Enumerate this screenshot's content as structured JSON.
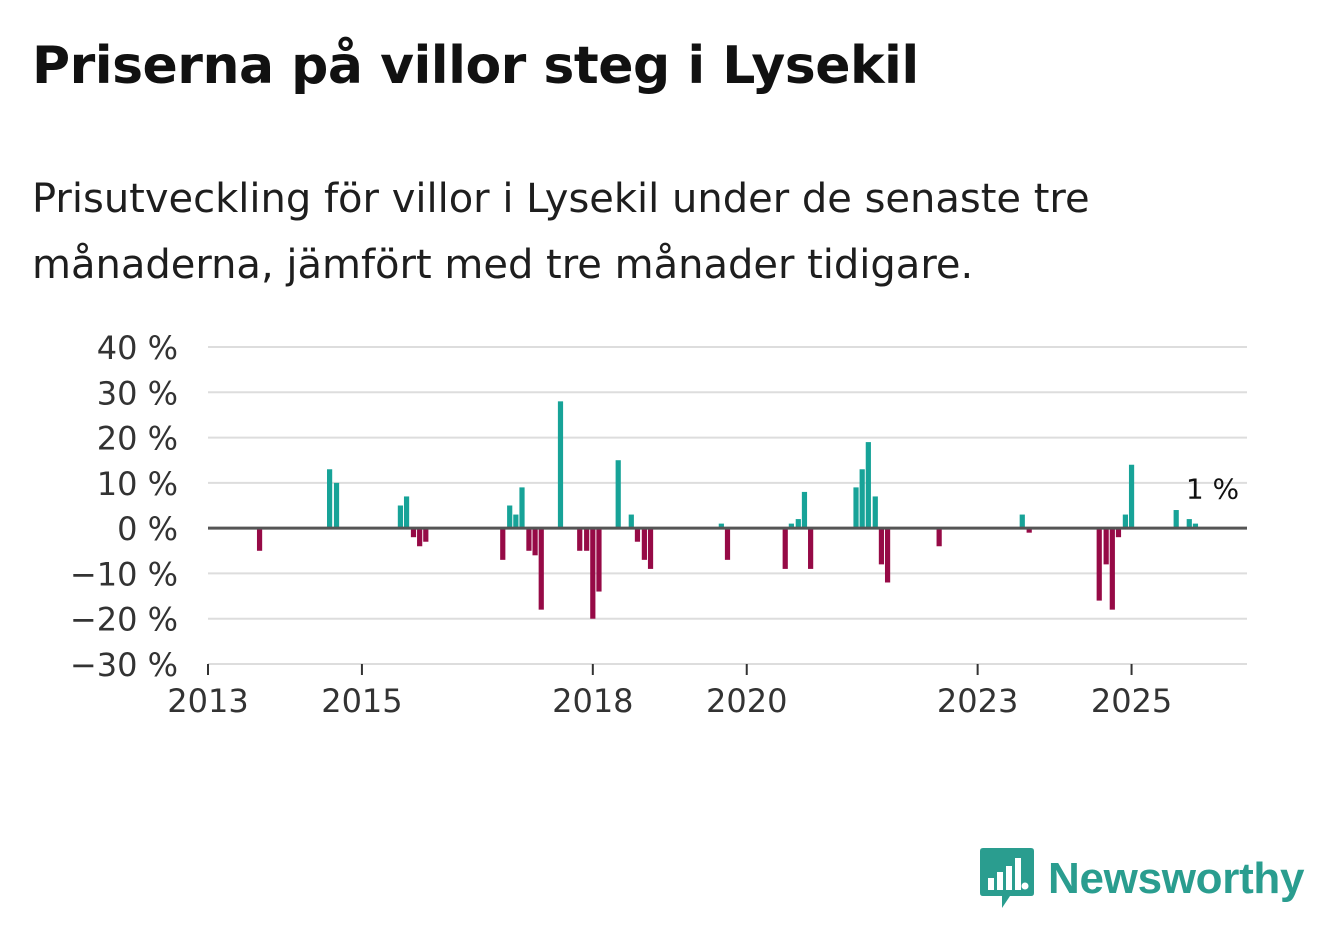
{
  "header": {
    "title": "Priserna på villor steg i Lysekil",
    "subtitle": "Prisutveckling för villor i Lysekil under de senaste tre månaderna, jämfört med tre månader tidigare."
  },
  "brand": {
    "name": "Newsworthy"
  },
  "colors": {
    "positive": "#17a398",
    "negative": "#960a46",
    "grid": "#dddddd",
    "zero": "#555555",
    "brand": "#2a9d8f"
  },
  "chart_data": {
    "type": "bar",
    "title": "Priserna på villor steg i Lysekil",
    "xlabel": "",
    "ylabel": "",
    "ylim": [
      -30,
      40
    ],
    "yticks": [
      40,
      30,
      20,
      10,
      0,
      -10,
      -20,
      -30
    ],
    "ytick_labels": [
      "40 %",
      "30 %",
      "20 %",
      "10 %",
      "0 %",
      "−10 %",
      "−20 %",
      "−30 %"
    ],
    "xlim": [
      2013,
      2026.5
    ],
    "xticks": [
      2013,
      2015,
      2018,
      2020,
      2023,
      2025
    ],
    "xtick_labels": [
      "2013",
      "2015",
      "2018",
      "2020",
      "2023",
      "2025"
    ],
    "annotation": {
      "text": "1 %",
      "x": 2026.0,
      "value": 1
    },
    "x": [
      2013.67,
      2014.58,
      2014.67,
      2015.5,
      2015.58,
      2015.67,
      2015.75,
      2015.83,
      2016.83,
      2016.92,
      2017.0,
      2017.08,
      2017.17,
      2017.25,
      2017.33,
      2017.58,
      2017.83,
      2017.92,
      2018.0,
      2018.08,
      2018.33,
      2018.5,
      2018.58,
      2018.67,
      2018.75,
      2019.67,
      2019.75,
      2020.5,
      2020.58,
      2020.67,
      2020.75,
      2020.83,
      2021.42,
      2021.5,
      2021.58,
      2021.67,
      2021.75,
      2021.83,
      2022.5,
      2023.58,
      2023.67,
      2024.58,
      2024.67,
      2024.75,
      2024.83,
      2024.92,
      2025.0,
      2025.58,
      2025.75,
      2025.83
    ],
    "values": [
      -5,
      13,
      10,
      5,
      7,
      -2,
      -4,
      -3,
      -7,
      5,
      3,
      9,
      -5,
      -6,
      -18,
      28,
      -5,
      -5,
      -20,
      -14,
      15,
      3,
      -3,
      -7,
      -9,
      1,
      -7,
      -9,
      1,
      2,
      8,
      -9,
      9,
      13,
      19,
      7,
      -8,
      -12,
      -4,
      3,
      -1,
      -16,
      -8,
      -18,
      -2,
      3,
      14,
      4,
      2,
      1
    ]
  }
}
